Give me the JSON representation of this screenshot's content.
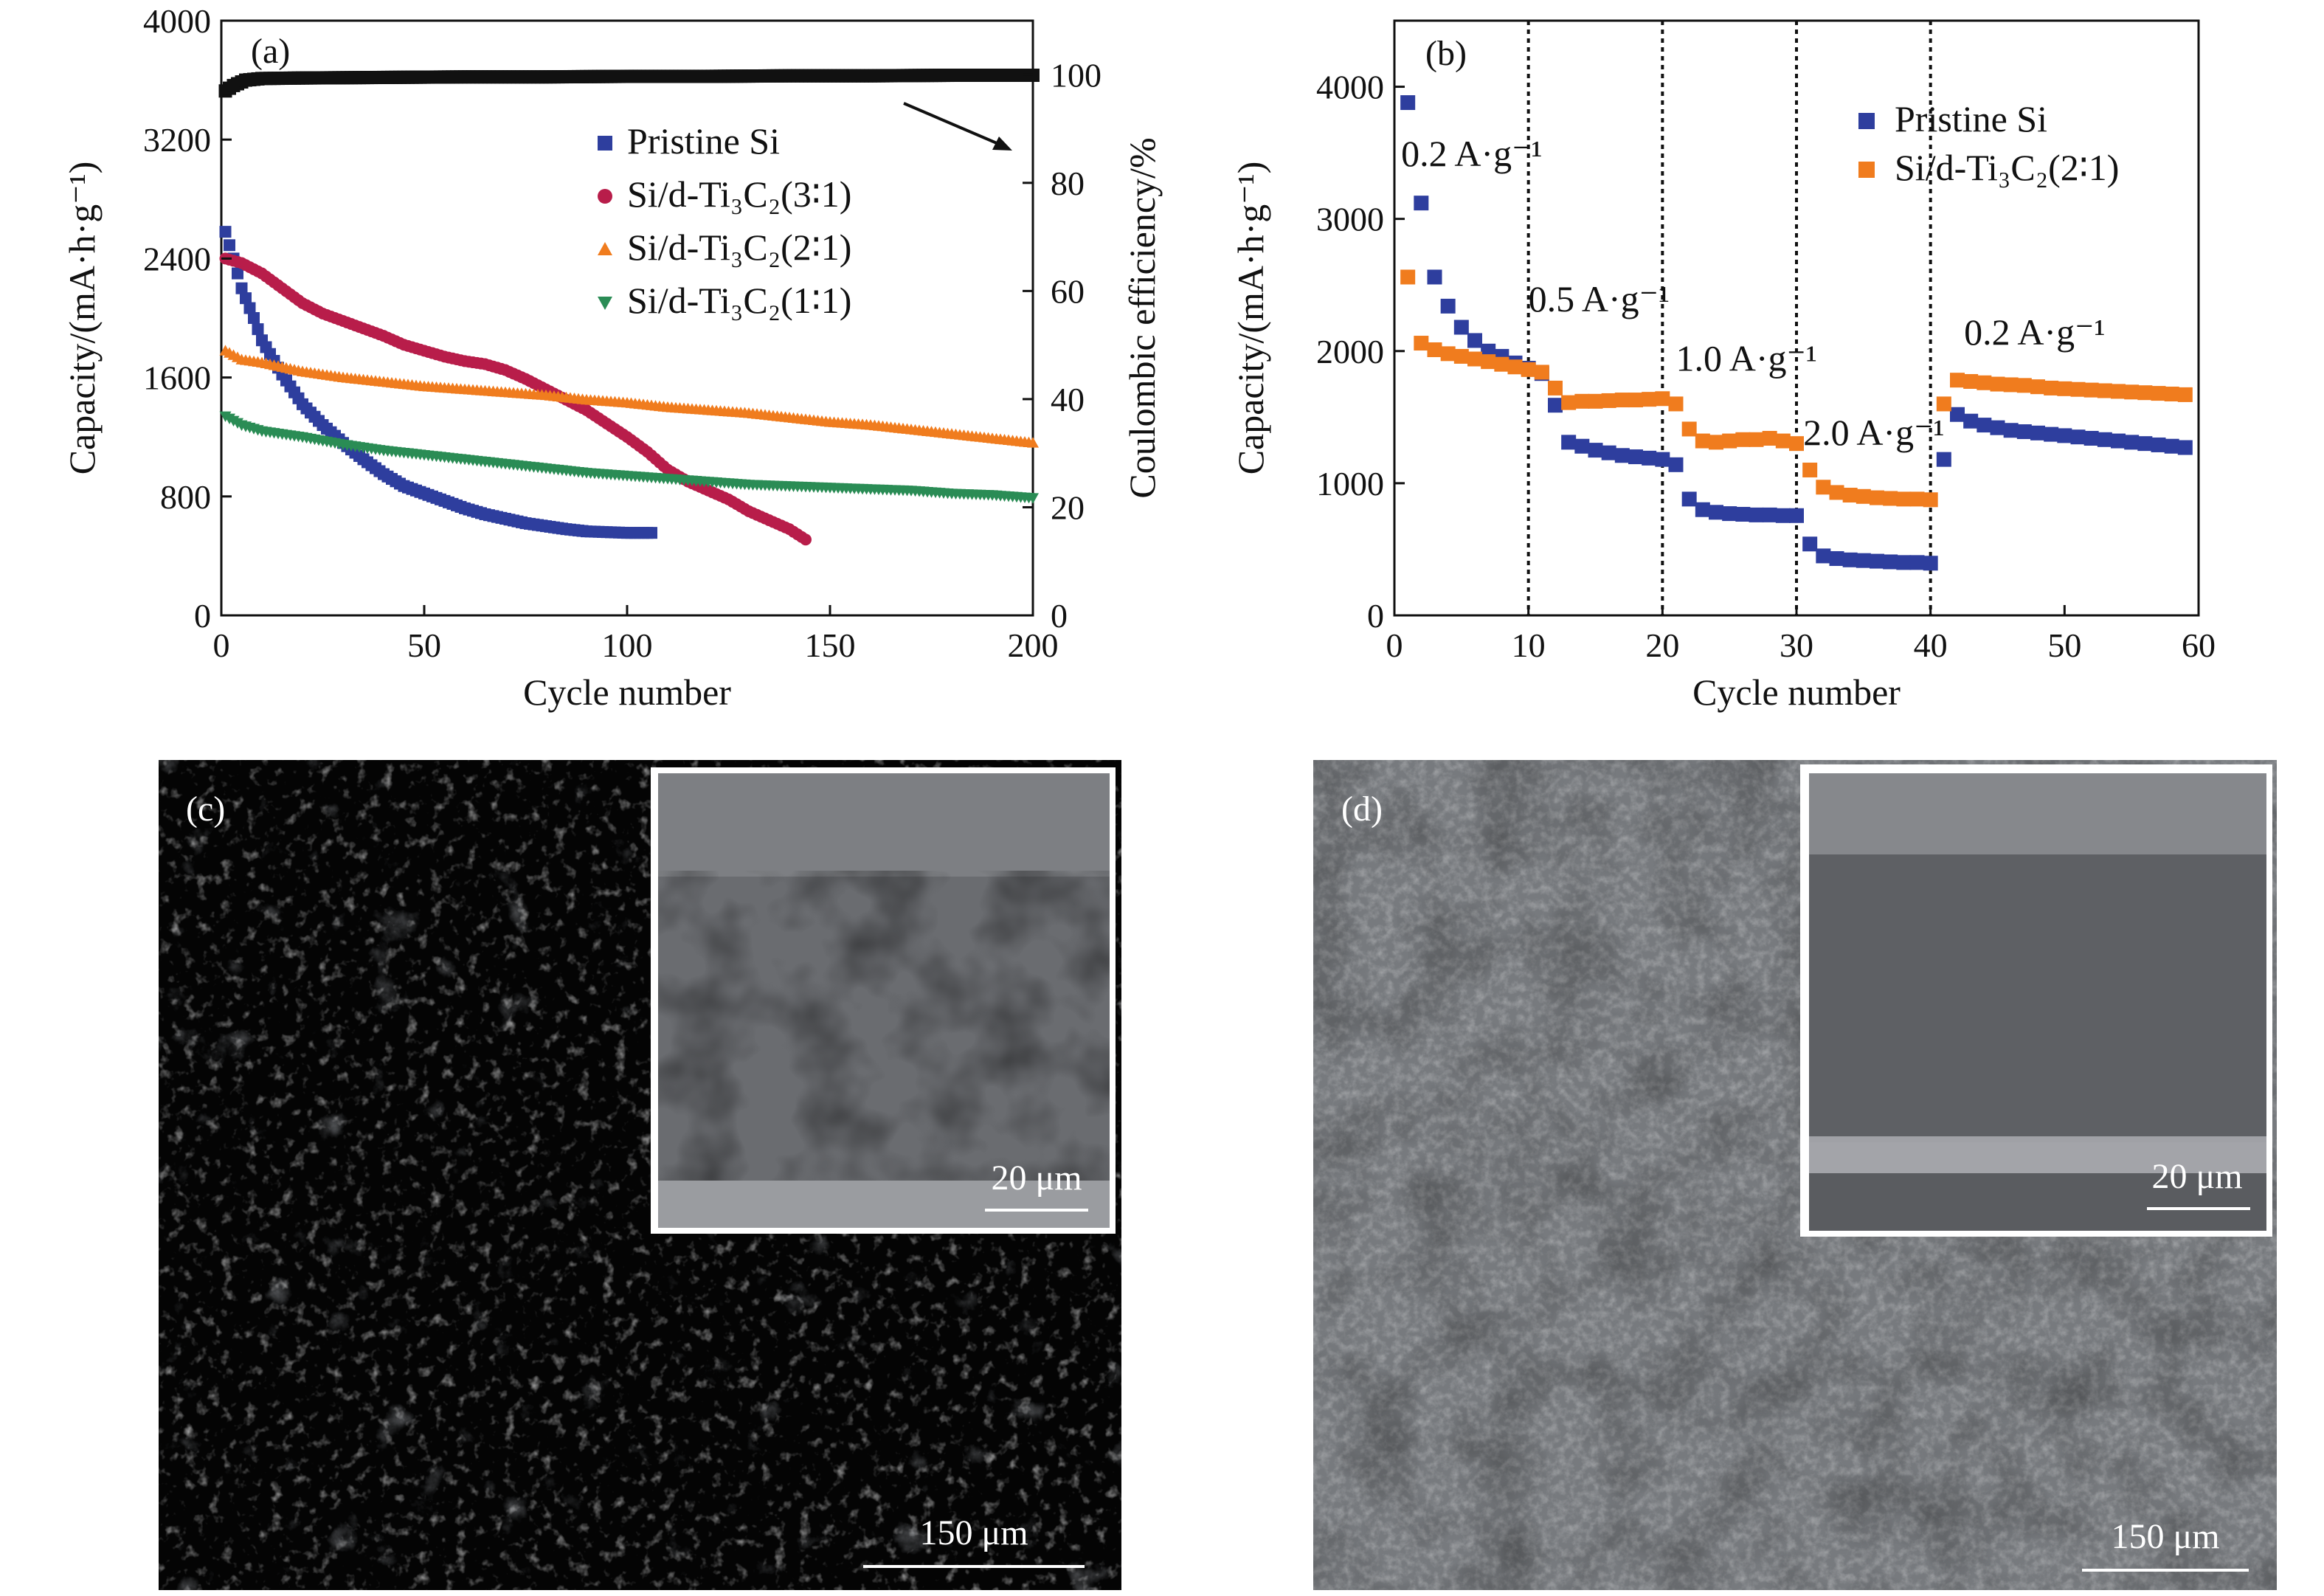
{
  "chart_data": [
    {
      "type": "scatter",
      "panel_label": "(a)",
      "xlabel": "Cycle number",
      "ylabel": "Capacity/(mA·h·g⁻¹)",
      "y2label": "Coulombic efficiency/%",
      "xlim": [
        0,
        200
      ],
      "ylim": [
        0,
        4000
      ],
      "y2lim": [
        0,
        110
      ],
      "xticks": [
        0,
        50,
        100,
        150,
        200
      ],
      "yticks": [
        0,
        800,
        1600,
        2400,
        3200,
        4000
      ],
      "y2ticks": [
        0,
        20,
        40,
        60,
        80,
        100
      ],
      "legend_position": "upper-middle",
      "series": [
        {
          "name": "Pristine Si",
          "color": "#2e3e9e",
          "marker": "square",
          "axis": "left",
          "points": [
            [
              1,
              2580
            ],
            [
              3,
              2400
            ],
            [
              5,
              2200
            ],
            [
              8,
              2000
            ],
            [
              10,
              1850
            ],
            [
              15,
              1620
            ],
            [
              20,
              1420
            ],
            [
              25,
              1280
            ],
            [
              30,
              1160
            ],
            [
              35,
              1050
            ],
            [
              40,
              950
            ],
            [
              45,
              870
            ],
            [
              50,
              820
            ],
            [
              55,
              770
            ],
            [
              60,
              720
            ],
            [
              65,
              680
            ],
            [
              70,
              650
            ],
            [
              75,
              620
            ],
            [
              80,
              600
            ],
            [
              85,
              580
            ],
            [
              90,
              565
            ],
            [
              95,
              560
            ],
            [
              100,
              555
            ],
            [
              106,
              555
            ]
          ]
        },
        {
          "name": "Si/d-Ti₃C₂(3∶1)",
          "color": "#b81d4a",
          "marker": "circle",
          "axis": "left",
          "points": [
            [
              1,
              2400
            ],
            [
              5,
              2370
            ],
            [
              10,
              2300
            ],
            [
              15,
              2200
            ],
            [
              20,
              2100
            ],
            [
              25,
              2030
            ],
            [
              30,
              1980
            ],
            [
              35,
              1930
            ],
            [
              40,
              1880
            ],
            [
              45,
              1820
            ],
            [
              50,
              1780
            ],
            [
              55,
              1740
            ],
            [
              60,
              1710
            ],
            [
              65,
              1690
            ],
            [
              70,
              1650
            ],
            [
              75,
              1590
            ],
            [
              80,
              1520
            ],
            [
              85,
              1450
            ],
            [
              90,
              1380
            ],
            [
              95,
              1290
            ],
            [
              100,
              1200
            ],
            [
              105,
              1100
            ],
            [
              110,
              980
            ],
            [
              115,
              900
            ],
            [
              120,
              840
            ],
            [
              125,
              780
            ],
            [
              130,
              700
            ],
            [
              135,
              640
            ],
            [
              140,
              580
            ],
            [
              144,
              510
            ]
          ]
        },
        {
          "name": "Si/d-Ti₃C₂(2∶1)",
          "color": "#f07c1e",
          "marker": "triangle-up",
          "axis": "left",
          "points": [
            [
              1,
              1780
            ],
            [
              5,
              1720
            ],
            [
              10,
              1700
            ],
            [
              20,
              1640
            ],
            [
              30,
              1600
            ],
            [
              40,
              1570
            ],
            [
              50,
              1540
            ],
            [
              60,
              1520
            ],
            [
              70,
              1500
            ],
            [
              80,
              1480
            ],
            [
              90,
              1450
            ],
            [
              100,
              1430
            ],
            [
              110,
              1400
            ],
            [
              120,
              1380
            ],
            [
              130,
              1360
            ],
            [
              140,
              1330
            ],
            [
              150,
              1300
            ],
            [
              160,
              1280
            ],
            [
              170,
              1250
            ],
            [
              180,
              1220
            ],
            [
              190,
              1190
            ],
            [
              200,
              1160
            ]
          ]
        },
        {
          "name": "Si/d-Ti₃C₂(1∶1)",
          "color": "#2a8c55",
          "marker": "triangle-down",
          "axis": "left",
          "points": [
            [
              1,
              1340
            ],
            [
              5,
              1280
            ],
            [
              10,
              1240
            ],
            [
              20,
              1200
            ],
            [
              30,
              1150
            ],
            [
              40,
              1110
            ],
            [
              50,
              1080
            ],
            [
              60,
              1050
            ],
            [
              70,
              1020
            ],
            [
              80,
              990
            ],
            [
              90,
              960
            ],
            [
              100,
              940
            ],
            [
              110,
              920
            ],
            [
              120,
              900
            ],
            [
              130,
              880
            ],
            [
              140,
              870
            ],
            [
              150,
              860
            ],
            [
              160,
              850
            ],
            [
              170,
              840
            ],
            [
              180,
              820
            ],
            [
              190,
              810
            ],
            [
              200,
              790
            ]
          ]
        },
        {
          "name": "",
          "color": "#111111",
          "marker": "square",
          "axis": "right",
          "points": [
            [
              1,
              97
            ],
            [
              3,
              98
            ],
            [
              6,
              99
            ],
            [
              10,
              99.3
            ],
            [
              20,
              99.4
            ],
            [
              40,
              99.5
            ],
            [
              60,
              99.6
            ],
            [
              80,
              99.6
            ],
            [
              100,
              99.7
            ],
            [
              120,
              99.7
            ],
            [
              140,
              99.8
            ],
            [
              160,
              99.8
            ],
            [
              180,
              99.9
            ],
            [
              200,
              99.9
            ]
          ]
        }
      ]
    },
    {
      "type": "scatter",
      "panel_label": "(b)",
      "xlabel": "Cycle number",
      "ylabel": "Capacity/(mA·h·g⁻¹)",
      "xlim": [
        0,
        60
      ],
      "ylim": [
        0,
        4500
      ],
      "xticks": [
        0,
        10,
        20,
        30,
        40,
        50,
        60
      ],
      "yticks": [
        0,
        1000,
        2000,
        3000,
        4000
      ],
      "legend_position": "top-right",
      "vlines": [
        10,
        20,
        30,
        40
      ],
      "annotations": [
        {
          "text": "0.2 A·g⁻¹",
          "x": 0.5,
          "y": 3400
        },
        {
          "text": "0.5 A·g⁻¹",
          "x": 10,
          "y": 2300
        },
        {
          "text": "1.0 A·g⁻¹",
          "x": 21,
          "y": 1850
        },
        {
          "text": "2.0 A·g⁻¹",
          "x": 30.5,
          "y": 1290
        },
        {
          "text": "0.2 A·g⁻¹",
          "x": 42.5,
          "y": 2050
        }
      ],
      "series": [
        {
          "name": "Pristine Si",
          "color": "#2e3e9e",
          "marker": "square",
          "x": [
            1,
            2,
            3,
            4,
            5,
            6,
            7,
            8,
            9,
            10,
            11,
            12,
            13,
            14,
            15,
            16,
            17,
            18,
            19,
            20,
            21,
            22,
            23,
            24,
            25,
            26,
            27,
            28,
            29,
            30,
            31,
            32,
            33,
            34,
            35,
            36,
            37,
            38,
            39,
            40,
            41,
            42,
            43,
            44,
            45,
            46,
            47,
            48,
            49,
            50,
            51,
            52,
            53,
            54,
            55,
            56,
            57,
            58,
            59
          ],
          "values": [
            3880,
            3120,
            2560,
            2340,
            2180,
            2080,
            2000,
            1960,
            1910,
            1870,
            1830,
            1590,
            1310,
            1280,
            1250,
            1230,
            1210,
            1200,
            1190,
            1180,
            1140,
            880,
            800,
            780,
            770,
            765,
            760,
            760,
            755,
            755,
            540,
            450,
            430,
            420,
            415,
            410,
            405,
            400,
            400,
            395,
            1180,
            1520,
            1470,
            1440,
            1420,
            1400,
            1390,
            1380,
            1370,
            1360,
            1350,
            1340,
            1330,
            1320,
            1310,
            1300,
            1290,
            1280,
            1270
          ]
        },
        {
          "name": "Si/d-Ti₃C₂(2∶1)",
          "color": "#f07c1e",
          "marker": "square",
          "x": [
            1,
            2,
            3,
            4,
            5,
            6,
            7,
            8,
            9,
            10,
            11,
            12,
            13,
            14,
            15,
            16,
            17,
            18,
            19,
            20,
            21,
            22,
            23,
            24,
            25,
            26,
            27,
            28,
            29,
            30,
            31,
            32,
            33,
            34,
            35,
            36,
            37,
            38,
            39,
            40,
            41,
            42,
            43,
            44,
            45,
            46,
            47,
            48,
            49,
            50,
            51,
            52,
            53,
            54,
            55,
            56,
            57,
            58,
            59
          ],
          "values": [
            2560,
            2060,
            2010,
            1980,
            1960,
            1940,
            1920,
            1900,
            1880,
            1860,
            1840,
            1720,
            1610,
            1620,
            1620,
            1625,
            1630,
            1630,
            1635,
            1640,
            1600,
            1410,
            1320,
            1310,
            1320,
            1330,
            1330,
            1340,
            1320,
            1300,
            1100,
            970,
            930,
            910,
            900,
            890,
            885,
            880,
            880,
            875,
            1600,
            1780,
            1770,
            1760,
            1750,
            1745,
            1740,
            1730,
            1720,
            1715,
            1710,
            1705,
            1700,
            1695,
            1690,
            1685,
            1680,
            1675,
            1670
          ]
        }
      ]
    }
  ],
  "panels": {
    "c": {
      "label": "(c)",
      "scale_main": "150 μm",
      "scale_inset": "20 μm"
    },
    "d": {
      "label": "(d)",
      "scale_main": "150 μm",
      "scale_inset": "20 μm"
    }
  }
}
